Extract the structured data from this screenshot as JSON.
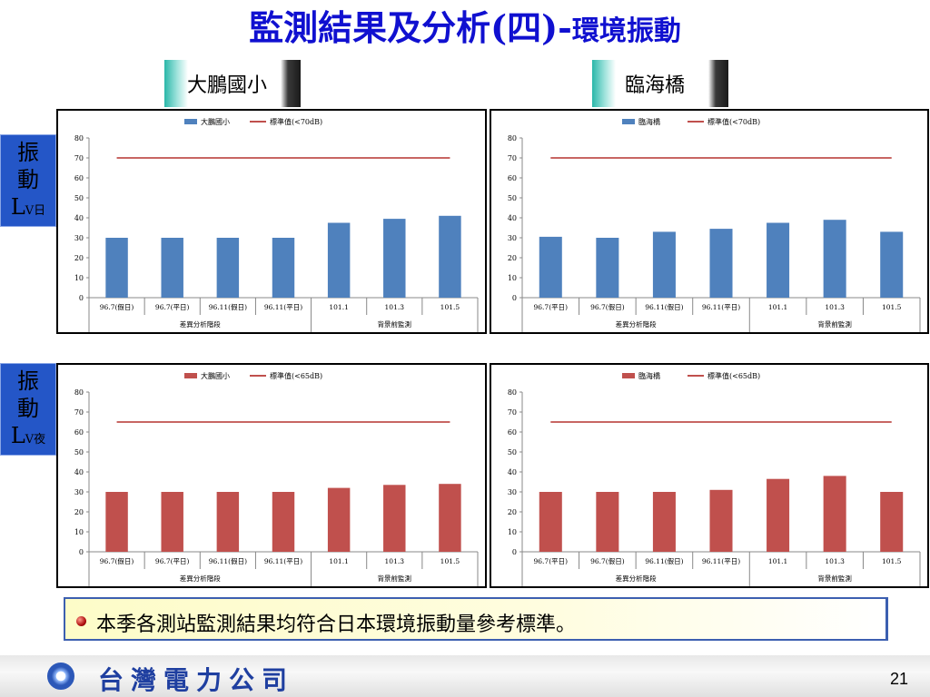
{
  "slide": {
    "title_main": "監測結果及分析(四)",
    "title_sep": "-",
    "title_sub": "環境振動",
    "page_number": "21"
  },
  "sites": {
    "left": "大鵬國小",
    "right": "臨海橋"
  },
  "row_labels": {
    "day": {
      "top": "振",
      "middle": "動",
      "letter": "L",
      "suffix": "V日"
    },
    "night": {
      "top": "振",
      "middle": "動",
      "letter": "L",
      "suffix": "V夜"
    }
  },
  "note": {
    "text": "本季各測站監測結果均符合日本環境振動量參考標準。"
  },
  "footer": {
    "company": "台灣電力公司"
  },
  "colors": {
    "blue": "#4f81bd",
    "red": "#c0504d",
    "standard_line": "#c0504d",
    "title": "#1010d0"
  },
  "chart_data": [
    {
      "type": "bar",
      "site": "大鵬國小",
      "period": "day",
      "categories": [
        "96.7(假日)",
        "96.7(平日)",
        "96.11(假日)",
        "96.11(平日)",
        "101.1",
        "101.3",
        "101.5"
      ],
      "groups": [
        {
          "label": "差異分析階段",
          "span": 4
        },
        {
          "label": "背景前監測",
          "span": 3
        }
      ],
      "series": [
        {
          "name": "大鵬國小",
          "type": "bar",
          "color": "#4f81bd",
          "values": [
            30,
            30,
            30,
            30,
            37.5,
            39.5,
            41
          ]
        },
        {
          "name": "標準值(<70dB)",
          "type": "line",
          "color": "#c0504d",
          "values": [
            70,
            70,
            70,
            70,
            70,
            70,
            70
          ]
        }
      ],
      "ylim": [
        0,
        80
      ],
      "yticks": [
        "0",
        "10",
        "20",
        "30",
        "40",
        "50",
        "60",
        "70",
        "80"
      ],
      "legend": "top-center"
    },
    {
      "type": "bar",
      "site": "臨海橋",
      "period": "day",
      "categories": [
        "96.7(平日)",
        "96.7(假日)",
        "96.11(假日)",
        "96.11(平日)",
        "101.1",
        "101.3",
        "101.5"
      ],
      "groups": [
        {
          "label": "差異分析階段",
          "span": 4
        },
        {
          "label": "背景前監測",
          "span": 3
        }
      ],
      "series": [
        {
          "name": "臨海橋",
          "type": "bar",
          "color": "#4f81bd",
          "values": [
            30.5,
            30,
            33,
            34.5,
            37.5,
            39,
            33
          ]
        },
        {
          "name": "標準值(<70dB)",
          "type": "line",
          "color": "#c0504d",
          "values": [
            70,
            70,
            70,
            70,
            70,
            70,
            70
          ]
        }
      ],
      "ylim": [
        0,
        80
      ],
      "yticks": [
        "0",
        "10",
        "20",
        "30",
        "40",
        "50",
        "60",
        "70",
        "80"
      ],
      "legend": "top-center"
    },
    {
      "type": "bar",
      "site": "大鵬國小",
      "period": "night",
      "categories": [
        "96.7(假日)",
        "96.7(平日)",
        "96.11(假日)",
        "96.11(平日)",
        "101.1",
        "101.3",
        "101.5"
      ],
      "groups": [
        {
          "label": "差異分析階段",
          "span": 4
        },
        {
          "label": "背景前監測",
          "span": 3
        }
      ],
      "series": [
        {
          "name": "大鵬國小",
          "type": "bar",
          "color": "#c0504d",
          "values": [
            30,
            30,
            30,
            30,
            32,
            33.5,
            34
          ]
        },
        {
          "name": "標準值(<65dB)",
          "type": "line",
          "color": "#c0504d",
          "values": [
            65,
            65,
            65,
            65,
            65,
            65,
            65
          ]
        }
      ],
      "ylim": [
        0,
        80
      ],
      "yticks": [
        "0",
        "10",
        "20",
        "30",
        "40",
        "50",
        "60",
        "70",
        "80"
      ],
      "legend": "top-center"
    },
    {
      "type": "bar",
      "site": "臨海橋",
      "period": "night",
      "categories": [
        "96.7(平日)",
        "96.7(假日)",
        "96.11(假日)",
        "96.11(平日)",
        "101.1",
        "101.3",
        "101.5"
      ],
      "groups": [
        {
          "label": "差異分析階段",
          "span": 4
        },
        {
          "label": "背景前監測",
          "span": 3
        }
      ],
      "series": [
        {
          "name": "臨海橋",
          "type": "bar",
          "color": "#c0504d",
          "values": [
            30,
            30,
            30,
            31,
            36.5,
            38,
            30
          ]
        },
        {
          "name": "標準值(<65dB)",
          "type": "line",
          "color": "#c0504d",
          "values": [
            65,
            65,
            65,
            65,
            65,
            65,
            65
          ]
        }
      ],
      "ylim": [
        0,
        80
      ],
      "yticks": [
        "0",
        "10",
        "20",
        "30",
        "40",
        "50",
        "60",
        "70",
        "80"
      ],
      "legend": "top-center"
    }
  ]
}
